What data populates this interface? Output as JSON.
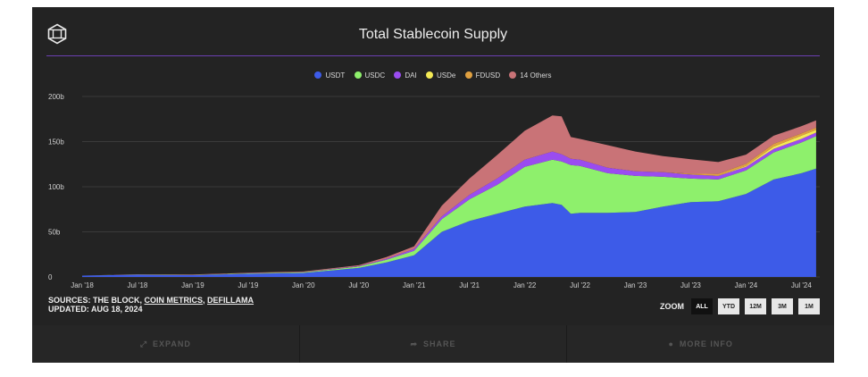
{
  "header": {
    "title": "Total Stablecoin Supply",
    "logo_icon": "hexagon-cube-icon"
  },
  "legend": [
    {
      "label": "USDT",
      "color": "#3d5be8"
    },
    {
      "label": "USDC",
      "color": "#8ef06c"
    },
    {
      "label": "DAI",
      "color": "#9a4cf0"
    },
    {
      "label": "USDe",
      "color": "#f4ea55"
    },
    {
      "label": "FDUSD",
      "color": "#e0a040"
    },
    {
      "label": "14 Others",
      "color": "#c97377"
    }
  ],
  "chart_data": {
    "type": "area",
    "title": "Total Stablecoin Supply",
    "xlabel": "",
    "ylabel": "",
    "stacked": true,
    "ylim": [
      0,
      200
    ],
    "y_ticks": [
      "0",
      "50b",
      "100b",
      "150b",
      "200b"
    ],
    "x_ticks": [
      "Jan '18",
      "Jul '18",
      "Jan '19",
      "Jul '19",
      "Jan '20",
      "Jul '20",
      "Jan '21",
      "Jul '21",
      "Jan '22",
      "Jul '22",
      "Jan '23",
      "Jul '23",
      "Jan '24",
      "Jul '24"
    ],
    "x": [
      "Jan '18",
      "Jul '18",
      "Jan '19",
      "Jul '19",
      "Jan '20",
      "Jul '20",
      "Oct '20",
      "Jan '21",
      "Apr '21",
      "Jul '21",
      "Oct '21",
      "Jan '22",
      "Apr '22",
      "May '22",
      "Jun '22",
      "Jul '22",
      "Oct '22",
      "Jan '23",
      "Apr '23",
      "Jul '23",
      "Oct '23",
      "Jan '24",
      "Apr '24",
      "Jul '24",
      "Aug '24"
    ],
    "series": [
      {
        "name": "USDT",
        "values": [
          1.5,
          2.5,
          2.0,
          3.5,
          4.5,
          10,
          16,
          24,
          50,
          62,
          70,
          78,
          82,
          80,
          70,
          71,
          71,
          72,
          78,
          83,
          84,
          92,
          108,
          115,
          120
        ]
      },
      {
        "name": "USDC",
        "values": [
          0,
          0.2,
          0.3,
          0.5,
          0.6,
          1.5,
          3,
          5,
          14,
          24,
          32,
          44,
          48,
          48,
          54,
          52,
          44,
          40,
          33,
          26,
          24,
          26,
          30,
          34,
          36
        ]
      },
      {
        "name": "DAI",
        "values": [
          0,
          0.05,
          0.1,
          0.2,
          0.2,
          0.5,
          1,
          2,
          3,
          5,
          7,
          8,
          9,
          8,
          7,
          7,
          6,
          5,
          5,
          4.5,
          4,
          4,
          4,
          4,
          4
        ]
      },
      {
        "name": "USDe",
        "values": [
          0,
          0,
          0,
          0,
          0,
          0,
          0,
          0,
          0,
          0,
          0,
          0,
          0,
          0,
          0,
          0,
          0,
          0,
          0,
          0,
          0.3,
          1,
          2.5,
          3.5,
          3
        ]
      },
      {
        "name": "FDUSD",
        "values": [
          0,
          0,
          0,
          0,
          0,
          0,
          0,
          0,
          0,
          0,
          0,
          0,
          0,
          0,
          0,
          0,
          0,
          0,
          0,
          1,
          2,
          2.5,
          3,
          2.5,
          2.5
        ]
      },
      {
        "name": "14 Others",
        "values": [
          0,
          0.2,
          0.3,
          0.5,
          0.7,
          1,
          2,
          3,
          12,
          18,
          26,
          32,
          40,
          42,
          24,
          23,
          25,
          22,
          18,
          16,
          13,
          10,
          9,
          8,
          8
        ]
      }
    ]
  },
  "footer_info": {
    "sources_prefix": "SOURCES: THE BLOCK, ",
    "source_link1": "COIN METRICS",
    "sep": ", ",
    "source_link2": "DEFILLAMA",
    "updated": "UPDATED: AUG 18, 2024"
  },
  "zoom": {
    "label": "ZOOM",
    "options": [
      "ALL",
      "YTD",
      "12M",
      "3M",
      "1M"
    ],
    "active": "ALL"
  },
  "actions": [
    {
      "label": "EXPAND",
      "icon": "expand-icon"
    },
    {
      "label": "SHARE",
      "icon": "share-icon"
    },
    {
      "label": "MORE INFO",
      "icon": "info-icon"
    }
  ]
}
